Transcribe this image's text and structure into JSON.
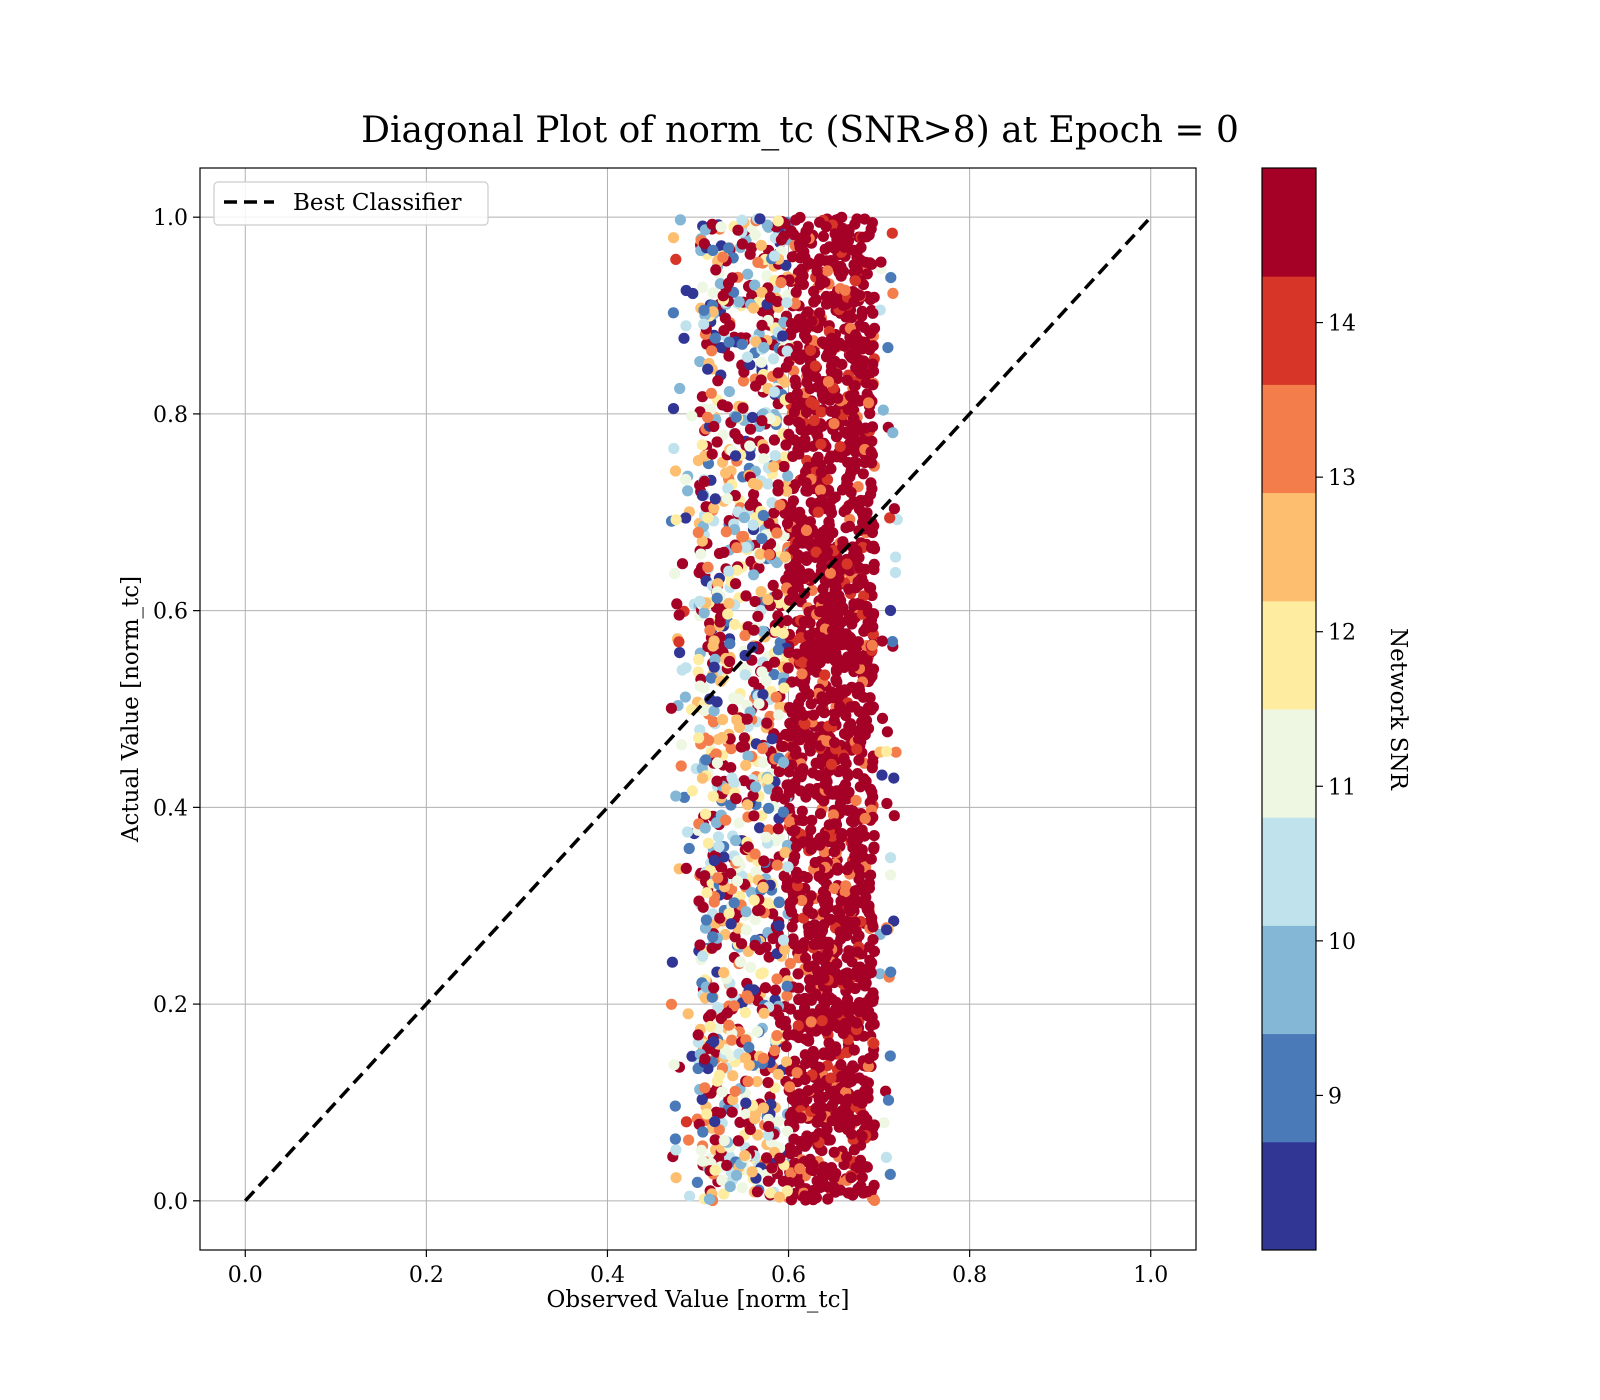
{
  "chart_data": {
    "type": "scatter",
    "title": "Diagonal Plot of norm_tc (SNR>8) at Epoch = 0",
    "xlabel": "Observed Value [norm_tc]",
    "ylabel": "Actual Value [norm_tc]",
    "xlim": [
      -0.05,
      1.05
    ],
    "ylim": [
      -0.05,
      1.05
    ],
    "xticks": [
      "0.0",
      "0.2",
      "0.4",
      "0.6",
      "0.8",
      "1.0"
    ],
    "yticks": [
      "0.0",
      "0.2",
      "0.4",
      "0.6",
      "0.8",
      "1.0"
    ],
    "grid": true,
    "legend": {
      "placement": "upper-left",
      "entries": [
        {
          "label": "Best Classifier",
          "style": "black-dashed-line"
        }
      ]
    },
    "diagonal_line": {
      "x": [
        0.0,
        1.0
      ],
      "y": [
        0.0,
        1.0
      ],
      "color": "#000000"
    },
    "scatter_description": {
      "x_range_observed": [
        0.47,
        0.72
      ],
      "y_range": [
        0.0,
        1.0
      ],
      "high_snr_x_band": [
        0.6,
        0.7
      ],
      "low_snr_x_band": [
        0.5,
        0.6
      ]
    },
    "colorbar": {
      "label": "Network SNR",
      "range": [
        8,
        15
      ],
      "ticks": [
        "9",
        "10",
        "11",
        "12",
        "13",
        "14"
      ],
      "bins": [
        {
          "from": 8.0,
          "to": 8.7,
          "color": "#313695"
        },
        {
          "from": 8.7,
          "to": 9.4,
          "color": "#4a7ab8"
        },
        {
          "from": 9.4,
          "to": 10.1,
          "color": "#84b7d6"
        },
        {
          "from": 10.1,
          "to": 10.8,
          "color": "#bfe2ec"
        },
        {
          "from": 10.8,
          "to": 11.5,
          "color": "#eef7e2"
        },
        {
          "from": 11.5,
          "to": 12.2,
          "color": "#feeca1"
        },
        {
          "from": 12.2,
          "to": 12.9,
          "color": "#fdbe6f"
        },
        {
          "from": 12.9,
          "to": 13.6,
          "color": "#f47d4c"
        },
        {
          "from": 13.6,
          "to": 14.3,
          "color": "#d73527"
        },
        {
          "from": 14.3,
          "to": 15.0,
          "color": "#a50026"
        }
      ]
    }
  }
}
